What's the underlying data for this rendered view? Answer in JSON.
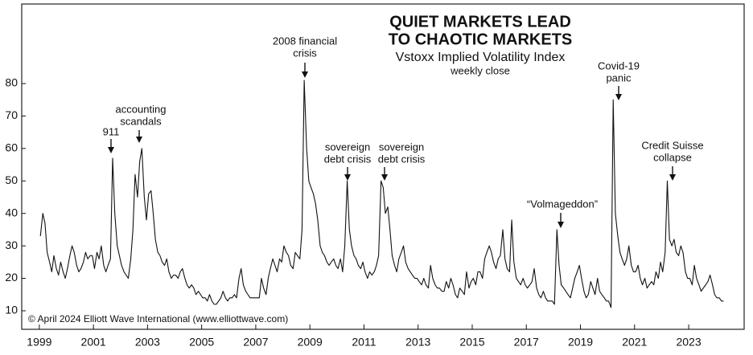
{
  "chart_data": {
    "type": "line",
    "title": [
      "QUIET MARKETS LEAD",
      "TO CHAOTIC MARKETS"
    ],
    "subtitle": [
      "Vstoxx Implied Volatility Index",
      "weekly close"
    ],
    "source": "© April 2024 Elliott Wave International (www.elliottwave.com)",
    "color": "#111111",
    "annotations": [
      {
        "lines": [
          "911"
        ]
      },
      {
        "lines": [
          "accounting",
          "scandals"
        ]
      },
      {
        "lines": [
          "2008 financial",
          "crisis"
        ]
      },
      {
        "lines": [
          "sovereign",
          "debt crisis"
        ]
      },
      {
        "lines": [
          "sovereign",
          "debt crisis"
        ]
      },
      {
        "lines": [
          "“Volmageddon”"
        ]
      },
      {
        "lines": [
          "Covid-19",
          "panic"
        ]
      },
      {
        "lines": [
          "Credit Suisse",
          "collapse"
        ]
      }
    ],
    "xlim": [
      1998.35,
      2025.05
    ],
    "xticks": [
      1999,
      2001,
      2003,
      2005,
      2007,
      2009,
      2011,
      2013,
      2015,
      2017,
      2019,
      2021,
      2023
    ],
    "ylim": [
      4.3,
      104.5
    ],
    "yticks": [
      10,
      20,
      30,
      40,
      50,
      60,
      70,
      80
    ],
    "x": [
      1999.04,
      1999.13,
      1999.21,
      1999.29,
      1999.38,
      1999.46,
      1999.54,
      1999.63,
      1999.71,
      1999.79,
      1999.88,
      1999.96,
      2000.04,
      2000.13,
      2000.21,
      2000.29,
      2000.38,
      2000.46,
      2000.54,
      2000.63,
      2000.71,
      2000.79,
      2000.88,
      2000.96,
      2001.04,
      2001.13,
      2001.21,
      2001.29,
      2001.38,
      2001.46,
      2001.54,
      2001.63,
      2001.71,
      2001.79,
      2001.88,
      2001.96,
      2002.04,
      2002.13,
      2002.21,
      2002.29,
      2002.38,
      2002.46,
      2002.54,
      2002.63,
      2002.71,
      2002.79,
      2002.88,
      2002.96,
      2003.04,
      2003.13,
      2003.21,
      2003.29,
      2003.38,
      2003.46,
      2003.54,
      2003.63,
      2003.71,
      2003.79,
      2003.88,
      2003.96,
      2004.04,
      2004.13,
      2004.21,
      2004.29,
      2004.38,
      2004.46,
      2004.54,
      2004.63,
      2004.71,
      2004.79,
      2004.88,
      2004.96,
      2005.04,
      2005.13,
      2005.21,
      2005.29,
      2005.38,
      2005.46,
      2005.54,
      2005.63,
      2005.71,
      2005.79,
      2005.88,
      2005.96,
      2006.04,
      2006.13,
      2006.21,
      2006.29,
      2006.38,
      2006.46,
      2006.54,
      2006.63,
      2006.71,
      2006.79,
      2006.88,
      2006.96,
      2007.04,
      2007.13,
      2007.21,
      2007.29,
      2007.38,
      2007.46,
      2007.54,
      2007.63,
      2007.71,
      2007.79,
      2007.88,
      2007.96,
      2008.04,
      2008.13,
      2008.21,
      2008.29,
      2008.38,
      2008.46,
      2008.54,
      2008.63,
      2008.71,
      2008.79,
      2008.88,
      2008.96,
      2009.04,
      2009.13,
      2009.21,
      2009.29,
      2009.38,
      2009.46,
      2009.54,
      2009.63,
      2009.71,
      2009.79,
      2009.88,
      2009.96,
      2010.04,
      2010.13,
      2010.21,
      2010.29,
      2010.38,
      2010.46,
      2010.54,
      2010.63,
      2010.71,
      2010.79,
      2010.88,
      2010.96,
      2011.04,
      2011.13,
      2011.21,
      2011.29,
      2011.38,
      2011.46,
      2011.54,
      2011.63,
      2011.71,
      2011.79,
      2011.88,
      2011.96,
      2012.04,
      2012.13,
      2012.21,
      2012.29,
      2012.38,
      2012.46,
      2012.54,
      2012.63,
      2012.71,
      2012.79,
      2012.88,
      2012.96,
      2013.04,
      2013.13,
      2013.21,
      2013.29,
      2013.38,
      2013.46,
      2013.54,
      2013.63,
      2013.71,
      2013.79,
      2013.88,
      2013.96,
      2014.04,
      2014.13,
      2014.21,
      2014.29,
      2014.38,
      2014.46,
      2014.54,
      2014.63,
      2014.71,
      2014.79,
      2014.88,
      2014.96,
      2015.04,
      2015.13,
      2015.21,
      2015.29,
      2015.38,
      2015.46,
      2015.54,
      2015.63,
      2015.71,
      2015.79,
      2015.88,
      2015.96,
      2016.04,
      2016.13,
      2016.21,
      2016.29,
      2016.38,
      2016.46,
      2016.54,
      2016.63,
      2016.71,
      2016.79,
      2016.88,
      2016.96,
      2017.04,
      2017.13,
      2017.21,
      2017.29,
      2017.38,
      2017.46,
      2017.54,
      2017.63,
      2017.71,
      2017.79,
      2017.88,
      2017.96,
      2018.04,
      2018.13,
      2018.21,
      2018.29,
      2018.38,
      2018.46,
      2018.54,
      2018.63,
      2018.71,
      2018.79,
      2018.88,
      2018.96,
      2019.04,
      2019.13,
      2019.21,
      2019.29,
      2019.38,
      2019.46,
      2019.54,
      2019.63,
      2019.71,
      2019.79,
      2019.88,
      2019.96,
      2020.04,
      2020.13,
      2020.21,
      2020.29,
      2020.38,
      2020.46,
      2020.54,
      2020.63,
      2020.71,
      2020.79,
      2020.88,
      2020.96,
      2021.04,
      2021.13,
      2021.21,
      2021.29,
      2021.38,
      2021.46,
      2021.54,
      2021.63,
      2021.71,
      2021.79,
      2021.88,
      2021.96,
      2022.04,
      2022.13,
      2022.21,
      2022.29,
      2022.38,
      2022.46,
      2022.54,
      2022.63,
      2022.71,
      2022.79,
      2022.88,
      2022.96,
      2023.04,
      2023.13,
      2023.21,
      2023.29,
      2023.38,
      2023.46,
      2023.54,
      2023.63,
      2023.71,
      2023.79,
      2023.88,
      2023.96,
      2024.04,
      2024.13,
      2024.21,
      2024.29
    ],
    "values": [
      33,
      40,
      37,
      28,
      25,
      22,
      27,
      23,
      21,
      25,
      22,
      20,
      23,
      27,
      30,
      28,
      24,
      22,
      23,
      25,
      28,
      26,
      27,
      27,
      23,
      28,
      26,
      30,
      24,
      22,
      24,
      26,
      57,
      40,
      30,
      27,
      24,
      22,
      21,
      20,
      26,
      35,
      52,
      45,
      56,
      60,
      45,
      38,
      46,
      47,
      40,
      32,
      28,
      27,
      25,
      24,
      26,
      22,
      20,
      21,
      21,
      20,
      22,
      23,
      20,
      18,
      17,
      18,
      17,
      15,
      16,
      15,
      14,
      14,
      13,
      15,
      13,
      12,
      12,
      13,
      14,
      16,
      14,
      13,
      14,
      14,
      15,
      14,
      20,
      23,
      18,
      16,
      15,
      14,
      14,
      14,
      14,
      14,
      20,
      17,
      15,
      20,
      23,
      26,
      24,
      22,
      26,
      25,
      30,
      28,
      27,
      24,
      23,
      28,
      27,
      26,
      35,
      81,
      60,
      50,
      48,
      46,
      43,
      38,
      30,
      28,
      27,
      25,
      24,
      25,
      26,
      24,
      23,
      26,
      22,
      30,
      50,
      35,
      30,
      27,
      26,
      24,
      23,
      25,
      22,
      20,
      22,
      21,
      22,
      24,
      27,
      50,
      48,
      40,
      42,
      35,
      27,
      24,
      22,
      26,
      28,
      30,
      25,
      23,
      22,
      21,
      20,
      20,
      19,
      18,
      20,
      18,
      17,
      24,
      20,
      18,
      17,
      17,
      16,
      16,
      19,
      17,
      20,
      18,
      15,
      14,
      17,
      16,
      15,
      22,
      17,
      19,
      20,
      18,
      22,
      22,
      20,
      26,
      28,
      30,
      28,
      25,
      23,
      26,
      27,
      35,
      26,
      23,
      22,
      38,
      25,
      20,
      19,
      18,
      20,
      18,
      17,
      18,
      19,
      23,
      17,
      15,
      14,
      16,
      14,
      13,
      13,
      13,
      12,
      35,
      24,
      18,
      17,
      16,
      15,
      14,
      17,
      20,
      22,
      24,
      20,
      16,
      14,
      15,
      19,
      17,
      15,
      20,
      16,
      15,
      14,
      13,
      13,
      11,
      75,
      40,
      33,
      28,
      26,
      24,
      26,
      30,
      24,
      22,
      22,
      24,
      20,
      18,
      20,
      17,
      18,
      19,
      18,
      22,
      20,
      25,
      22,
      28,
      50,
      32,
      30,
      32,
      28,
      27,
      30,
      28,
      22,
      20,
      20,
      18,
      24,
      20,
      18,
      16,
      17,
      18,
      19,
      21,
      18,
      15,
      14,
      14,
      13,
      13
    ]
  }
}
